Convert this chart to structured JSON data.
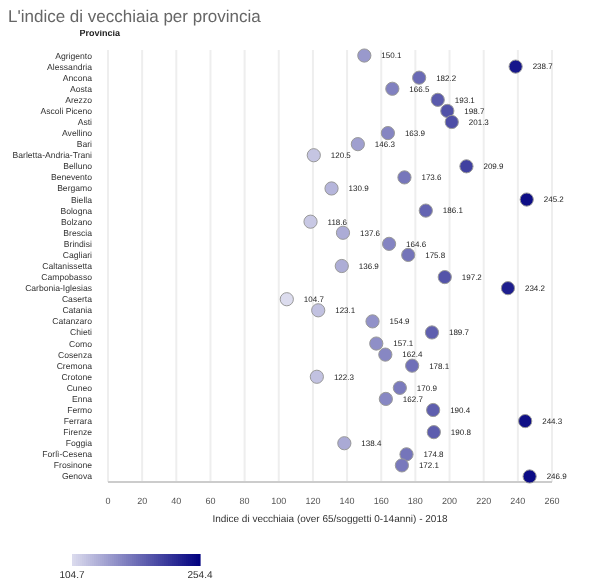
{
  "chart_data": {
    "type": "scatter",
    "title": "L'indice di vecchiaia per provincia",
    "xlabel": "Indice di vecchiaia (over 65/soggetti 0-14anni) - 2018",
    "ylabel": "Provincia",
    "orientation": "horizontal",
    "categories": [
      "Agrigento",
      "Alessandria",
      "Ancona",
      "Aosta",
      "Arezzo",
      "Ascoli Piceno",
      "Asti",
      "Avellino",
      "Bari",
      "Barletta-Andria-Trani",
      "Belluno",
      "Benevento",
      "Bergamo",
      "Biella",
      "Bologna",
      "Bolzano",
      "Brescia",
      "Brindisi",
      "Cagliari",
      "Caltanissetta",
      "Campobasso",
      "Carbonia-Iglesias",
      "Caserta",
      "Catania",
      "Catanzaro",
      "Chieti",
      "Como",
      "Cosenza",
      "Cremona",
      "Crotone",
      "Cuneo",
      "Enna",
      "Fermo",
      "Ferrara",
      "Firenze",
      "Foggia",
      "Forlì-Cesena",
      "Frosinone",
      "Genova"
    ],
    "values": [
      150.1,
      238.7,
      182.2,
      166.5,
      193.1,
      198.7,
      201.3,
      163.9,
      146.3,
      120.5,
      209.9,
      173.6,
      130.9,
      245.2,
      186.1,
      118.6,
      137.6,
      164.6,
      175.8,
      136.9,
      197.2,
      234.2,
      104.7,
      123.1,
      154.9,
      189.7,
      157.1,
      162.4,
      178.1,
      122.3,
      170.9,
      162.7,
      190.4,
      244.3,
      190.8,
      138.4,
      174.8,
      172.1,
      246.9
    ],
    "cvalues": [
      150.1,
      238.7,
      182.2,
      166.5,
      193.1,
      198.7,
      201.3,
      163.9,
      146.3,
      120.5,
      209.9,
      173.6,
      130.9,
      245.2,
      186.1,
      118.6,
      137.6,
      164.6,
      175.8,
      136.9,
      197.2,
      234.2,
      104.7,
      123.1,
      154.9,
      189.7,
      157.1,
      162.4,
      178.1,
      122.3,
      170.9,
      162.7,
      190.4,
      244.3,
      190.8,
      138.4,
      174.8,
      172.1,
      246.9
    ],
    "clim": [
      104.7,
      254.4
    ],
    "cticks": [
      104.7,
      254.4
    ],
    "xlim": [
      0,
      260
    ],
    "xticks": [
      0,
      20,
      40,
      60,
      80,
      100,
      120,
      140,
      160,
      180,
      200,
      220,
      240,
      260
    ],
    "grid": "x",
    "data_labels": true,
    "marker": "circle"
  }
}
